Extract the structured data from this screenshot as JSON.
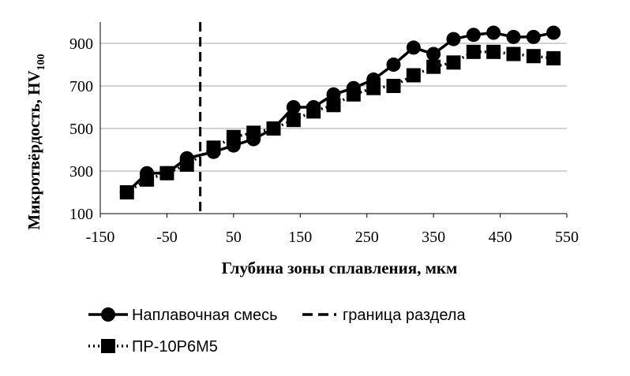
{
  "chart_data": {
    "type": "line",
    "title": "",
    "xlabel": "Глубина зоны сплавления, мкм",
    "ylabel": "Микротвёрдость, HV",
    "ylabel_sub": "100",
    "xlim": [
      -150,
      550
    ],
    "ylim": [
      100,
      1000
    ],
    "xticks": [
      -150,
      -50,
      50,
      150,
      250,
      350,
      450,
      550
    ],
    "yticks": [
      100,
      300,
      500,
      700,
      900
    ],
    "grid": "horizontal",
    "legend_position": "bottom",
    "boundary_x": 0,
    "series": [
      {
        "name": "Наплавочная смесь",
        "style": "solid",
        "marker": "circle",
        "color": "#000000",
        "x": [
          -110,
          -80,
          -50,
          -20,
          20,
          50,
          80,
          110,
          140,
          170,
          200,
          230,
          260,
          290,
          320,
          350,
          380,
          410,
          440,
          470,
          500,
          530
        ],
        "y": [
          200,
          290,
          290,
          360,
          390,
          420,
          450,
          500,
          600,
          600,
          660,
          690,
          730,
          800,
          880,
          850,
          920,
          940,
          950,
          930,
          930,
          950
        ]
      },
      {
        "name": "ПР-10Р6М5",
        "style": "dotted",
        "marker": "square",
        "color": "#000000",
        "x": [
          -110,
          -80,
          -50,
          -20,
          20,
          50,
          80,
          110,
          140,
          170,
          200,
          230,
          260,
          290,
          320,
          350,
          380,
          410,
          440,
          470,
          500,
          530
        ],
        "y": [
          200,
          260,
          290,
          330,
          410,
          460,
          480,
          500,
          540,
          580,
          610,
          660,
          690,
          700,
          750,
          790,
          810,
          860,
          860,
          850,
          840,
          830
        ]
      }
    ],
    "boundary_legend": "граница раздела"
  }
}
